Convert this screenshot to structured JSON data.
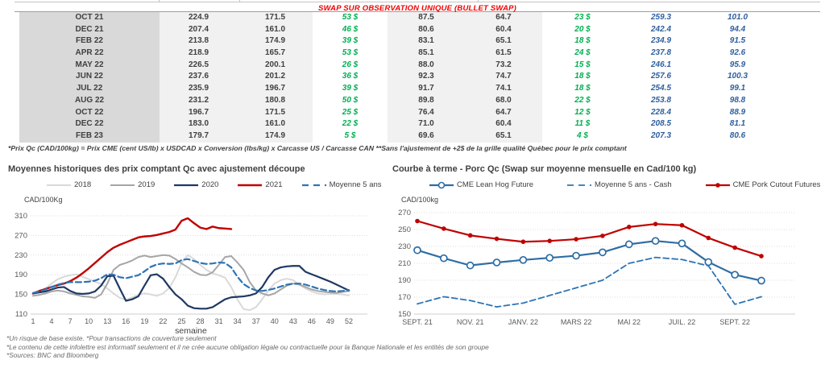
{
  "table": {
    "title": "SWAP SUR OBSERVATION UNIQUE (BULLET SWAP)",
    "rows": [
      [
        "OCT 21",
        "224.9",
        "171.5",
        "53 $",
        "87.5",
        "64.7",
        "23 $",
        "259.3",
        "101.0"
      ],
      [
        "DEC 21",
        "207.4",
        "161.0",
        "46 $",
        "80.6",
        "60.4",
        "20 $",
        "242.4",
        "94.4"
      ],
      [
        "FEB 22",
        "213.8",
        "174.9",
        "39 $",
        "83.1",
        "65.1",
        "18 $",
        "234.9",
        "91.5"
      ],
      [
        "APR 22",
        "218.9",
        "165.7",
        "53 $",
        "85.1",
        "61.5",
        "24 $",
        "237.8",
        "92.6"
      ],
      [
        "MAY 22",
        "226.5",
        "200.1",
        "26 $",
        "88.0",
        "73.2",
        "15 $",
        "246.1",
        "95.9"
      ],
      [
        "JUN 22",
        "237.6",
        "201.2",
        "36 $",
        "92.3",
        "74.7",
        "18 $",
        "257.6",
        "100.3"
      ],
      [
        "JUL 22",
        "235.9",
        "196.7",
        "39 $",
        "91.7",
        "74.1",
        "18 $",
        "254.5",
        "99.1"
      ],
      [
        "AUG 22",
        "231.2",
        "180.8",
        "50 $",
        "89.8",
        "68.0",
        "22 $",
        "253.8",
        "98.8"
      ],
      [
        "OCT 22",
        "196.7",
        "171.5",
        "25 $",
        "76.4",
        "64.7",
        "12 $",
        "228.4",
        "88.9"
      ],
      [
        "DEC 22",
        "183.0",
        "161.0",
        "22 $",
        "71.0",
        "60.4",
        "11 $",
        "208.5",
        "81.1"
      ],
      [
        "FEB 23",
        "179.7",
        "174.9",
        "5 $",
        "69.6",
        "65.1",
        "4 $",
        "207.3",
        "80.6"
      ]
    ],
    "footnote": "*Prix Qc (CAD/100kg) = Prix CME (cent US/lb) x USDCAD x Conversion (lbs/kg) x Carcasse US / Carcasse CAN **Sans l'ajustement de +2$ de la grille qualité Québec pour le prix comptant"
  },
  "colors": {
    "title_red": "#ee0000",
    "table_green": "#00b050",
    "table_blue": "#2e5f9f",
    "grid": "#dcdcdc"
  },
  "chart_data": [
    {
      "type": "line",
      "title": "Moyennes historiques des prix comptant Qc avec ajustement découpe",
      "ylabel": "CAD/100Kg",
      "xlabel": "semaine",
      "ylim": [
        110,
        310
      ],
      "yticks": [
        110,
        150,
        190,
        230,
        270,
        310
      ],
      "xticks": [
        1,
        4,
        7,
        10,
        13,
        16,
        19,
        22,
        25,
        28,
        31,
        34,
        37,
        40,
        43,
        46,
        49,
        52
      ],
      "legend_position": "top",
      "grid": true,
      "series": [
        {
          "name": "2018",
          "color": "#d9d9d9",
          "style": "solid",
          "width": 2,
          "values": [
            150,
            155,
            162,
            172,
            181,
            186,
            189,
            191,
            186,
            181,
            176,
            171,
            162,
            152,
            143,
            139,
            144,
            149,
            152,
            150,
            147,
            152,
            163,
            185,
            215,
            230,
            222,
            210,
            200,
            193,
            189,
            184,
            165,
            140,
            120,
            118,
            124,
            140,
            158,
            172,
            179,
            182,
            179,
            170,
            162,
            156,
            152,
            150,
            151,
            151,
            150,
            148
          ]
        },
        {
          "name": "2019",
          "color": "#a6a6a6",
          "style": "solid",
          "width": 2,
          "values": [
            147,
            149,
            152,
            156,
            158,
            156,
            152,
            149,
            146,
            145,
            143,
            150,
            172,
            200,
            210,
            214,
            219,
            226,
            229,
            226,
            228,
            230,
            229,
            222,
            213,
            205,
            196,
            190,
            189,
            195,
            210,
            226,
            228,
            215,
            200,
            175,
            158,
            152,
            148,
            152,
            160,
            168,
            172,
            170,
            165,
            160,
            157,
            155,
            154,
            153,
            155,
            157
          ]
        },
        {
          "name": "2020",
          "color": "#1f3864",
          "style": "solid",
          "width": 2.2,
          "values": [
            152,
            154,
            156,
            160,
            164,
            165,
            157,
            152,
            151,
            152,
            156,
            168,
            187,
            188,
            162,
            137,
            140,
            146,
            168,
            189,
            191,
            182,
            165,
            150,
            140,
            127,
            122,
            121,
            121,
            124,
            132,
            140,
            144,
            145,
            146,
            148,
            152,
            165,
            185,
            200,
            205,
            207,
            208,
            208,
            196,
            191,
            186,
            181,
            176,
            170,
            164,
            158
          ]
        },
        {
          "name": "2021",
          "color": "#c00000",
          "style": "solid",
          "width": 2.4,
          "values": [
            152,
            157,
            161,
            165,
            169,
            172,
            177,
            184,
            193,
            203,
            214,
            225,
            236,
            245,
            251,
            256,
            261,
            266,
            268,
            269,
            271,
            274,
            277,
            282,
            300,
            305,
            295,
            286,
            283,
            288,
            285,
            284,
            283,
            null,
            null,
            null,
            null,
            null,
            null,
            null,
            null,
            null,
            null,
            null,
            null,
            null,
            null,
            null,
            null,
            null,
            null,
            null
          ]
        },
        {
          "name": "Moyenne 5 ans",
          "color": "#2e74b5",
          "style": "dashed",
          "width": 2.2,
          "values": [
            153,
            156,
            160,
            165,
            170,
            173,
            175,
            175,
            175,
            176,
            178,
            183,
            191,
            190,
            185,
            183,
            186,
            189,
            197,
            206,
            211,
            213,
            212,
            213,
            220,
            222,
            218,
            214,
            212,
            213,
            215,
            214,
            205,
            186,
            171,
            163,
            158,
            157,
            159,
            162,
            166,
            170,
            172,
            172,
            170,
            166,
            162,
            159,
            157,
            156,
            157,
            159
          ]
        }
      ]
    },
    {
      "type": "line",
      "title": "Courbe à terme - Porc Qc (Swap sur moyenne mensuelle en Cad/100 kg)",
      "ylabel": "CAD/100kg",
      "ylim": [
        150,
        270
      ],
      "yticks": [
        150,
        170,
        190,
        210,
        230,
        250,
        270
      ],
      "xticks": [
        {
          "pos": 0,
          "label": "SEPT. 21"
        },
        {
          "pos": 2,
          "label": "NOV. 21"
        },
        {
          "pos": 4,
          "label": "JANV. 22"
        },
        {
          "pos": 6,
          "label": "MARS 22"
        },
        {
          "pos": 8,
          "label": "MAI 22"
        },
        {
          "pos": 10,
          "label": "JUIL. 22"
        },
        {
          "pos": 12,
          "label": "SEPT. 22"
        }
      ],
      "legend_position": "top",
      "grid": true,
      "series": [
        {
          "name": "CME Lean Hog Future",
          "color": "#2e6da4",
          "style": "solid",
          "marker": "open-circle",
          "width": 2.2,
          "values": [
            225.5,
            216,
            207.5,
            211,
            214,
            216.5,
            219,
            223,
            232.5,
            236.5,
            233.5,
            211.5,
            196.5,
            189.5
          ]
        },
        {
          "name": "Moyenne 5 ans - Cash",
          "color": "#2e74b5",
          "style": "dashed",
          "width": 1.8,
          "values": [
            162,
            170.5,
            166,
            158.5,
            163,
            172,
            181,
            190,
            210,
            217,
            214.5,
            207,
            161.5,
            170.5
          ]
        },
        {
          "name": "CME Pork Cutout Futures",
          "color": "#c00000",
          "style": "solid",
          "marker": "dot",
          "width": 2.2,
          "values": [
            260,
            251,
            243,
            239,
            235.5,
            236.5,
            238.5,
            242.5,
            253,
            256.5,
            255,
            240,
            228.5,
            218.5
          ]
        }
      ]
    }
  ],
  "footnotes": {
    "line1": "*Un risque de base existe. *Pour transactions de couverture seulement",
    "line2": "*Le contenu de cette infolettre est informatif seulement et il ne crée aucune obligation légale ou contractuelle pour la Banque Nationale et les entités de son groupe",
    "line3": "*Sources: BNC and Bloomberg"
  }
}
